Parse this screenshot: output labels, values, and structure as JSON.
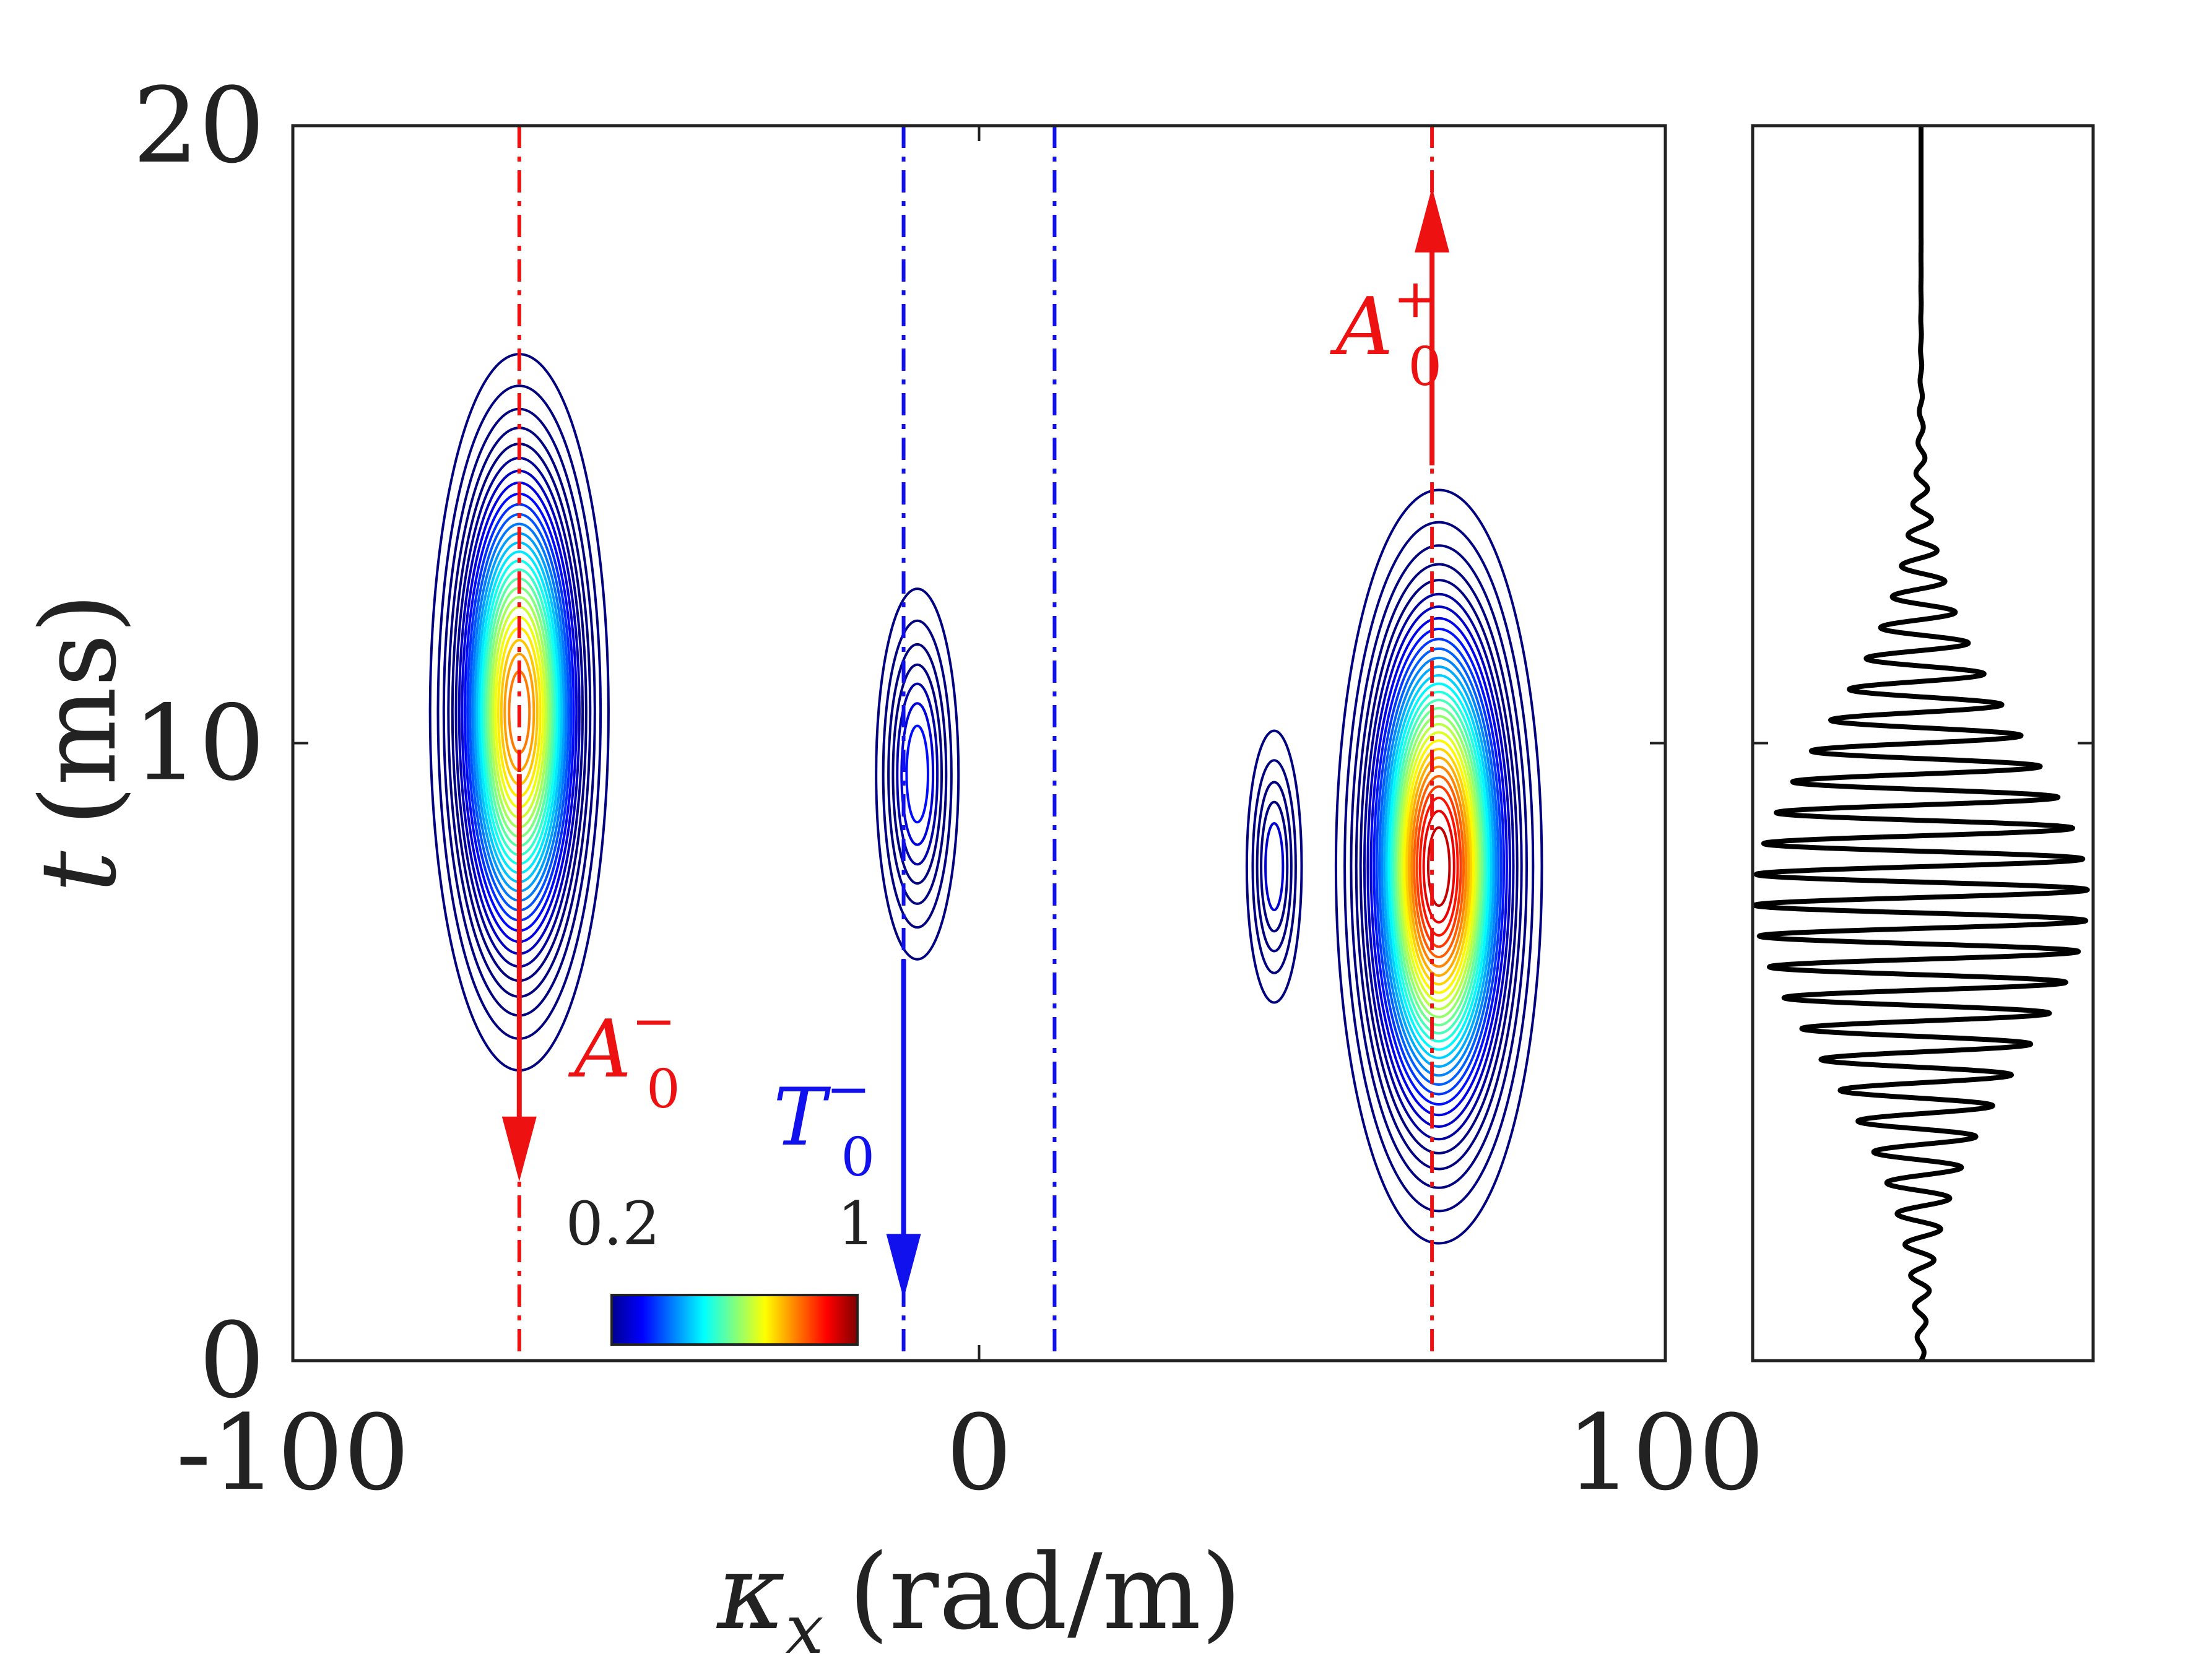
{
  "chart_data": [
    {
      "type": "contour",
      "title": "",
      "xlabel_symbol": "κ",
      "xlabel_subscript": "x",
      "xlabel_unit": "(rad/m)",
      "ylabel_symbol": "t",
      "ylabel_unit": "(ms)",
      "xlim": [
        -100,
        100
      ],
      "ylim": [
        0,
        20
      ],
      "xticks": [
        -100,
        0,
        100
      ],
      "xtick_labels": [
        "-100",
        "0",
        "100"
      ],
      "yticks": [
        0,
        10,
        20
      ],
      "ytick_labels": [
        "0",
        "10",
        "20"
      ],
      "colorbar": {
        "min_label": "0.2",
        "max_label": "1",
        "colormap": "jet"
      },
      "colors": {
        "red": "#ee1111",
        "blue": "#1111ee",
        "axis": "#222222",
        "contour_low": "#000080"
      },
      "blobs": [
        {
          "name": "A0-minus-packet",
          "kx": -67,
          "t": 10.5,
          "half_width_kx": 13,
          "half_height_t": 5.8,
          "peak": 0.85,
          "levels": 26
        },
        {
          "name": "T0-minus-packet",
          "kx": -9,
          "t": 9.5,
          "half_width_kx": 6,
          "half_height_t": 3.0,
          "peak": 0.34,
          "levels": 7
        },
        {
          "name": "small-packet",
          "kx": 43,
          "t": 8.0,
          "half_width_kx": 4,
          "half_height_t": 2.2,
          "peak": 0.3,
          "levels": 5
        },
        {
          "name": "A0-plus-packet",
          "kx": 67,
          "t": 8.0,
          "half_width_kx": 15,
          "half_height_t": 6.1,
          "peak": 1.0,
          "levels": 30
        }
      ],
      "reference_lines": [
        {
          "name": "A0-minus-line",
          "kx": -67,
          "color": "red",
          "arrow": {
            "from_t": 9.5,
            "to_t": 2.9
          },
          "label": "A",
          "sup": "−",
          "sub": "0",
          "label_pos": {
            "kx": -59,
            "t": 4.6
          }
        },
        {
          "name": "T0-minus-line",
          "kx": -11,
          "color": "blue",
          "arrow": {
            "from_t": 6.5,
            "to_t": 1.0
          },
          "label": "T",
          "sup": "−",
          "sub": "0",
          "label_pos": {
            "kx": -30,
            "t": 3.5
          }
        },
        {
          "name": "blue-dashed-line-right",
          "kx": 11,
          "color": "blue"
        },
        {
          "name": "A0-plus-line",
          "kx": 66,
          "color": "red",
          "arrow": {
            "from_t": 14.5,
            "to_t": 19.0
          },
          "label": "A",
          "sup": "+",
          "sub": "0",
          "label_pos": {
            "kx": 52,
            "t": 16.3
          }
        }
      ]
    },
    {
      "type": "line",
      "title": "",
      "orientation": "vertical",
      "ylim": [
        0,
        20
      ],
      "signal": {
        "description": "gaussian-modulated tone burst",
        "center_t": 7.5,
        "envelope_sigma_t": 2.6,
        "amplitude": 1.0,
        "cycles_per_ms": 2.0
      }
    }
  ]
}
